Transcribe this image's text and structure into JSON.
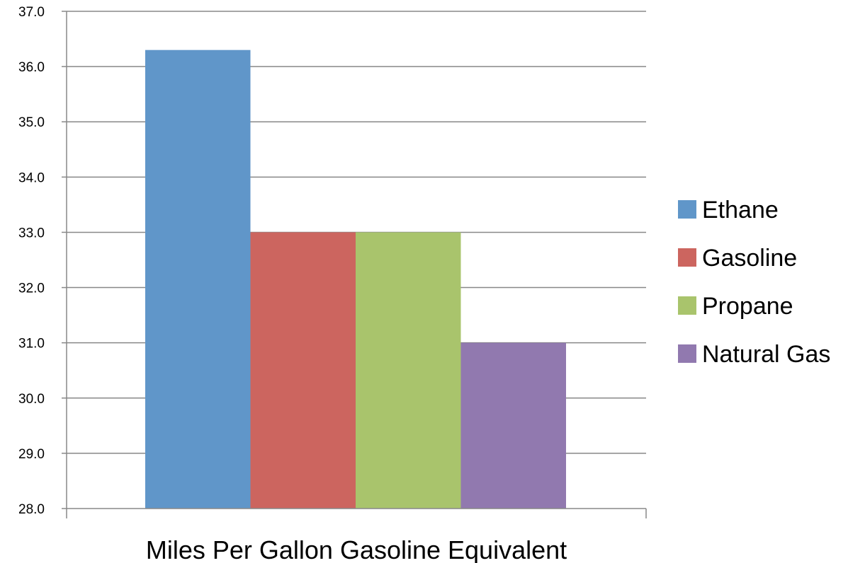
{
  "chart_data": {
    "type": "bar",
    "title": "",
    "xlabel": "Miles Per Gallon Gasoline Equivalent",
    "ylabel": "",
    "ylim": [
      28.0,
      37.0
    ],
    "y_ticks": [
      "28.0",
      "29.0",
      "30.0",
      "31.0",
      "32.0",
      "33.0",
      "34.0",
      "35.0",
      "36.0",
      "37.0"
    ],
    "y_tick_values": [
      28,
      29,
      30,
      31,
      32,
      33,
      34,
      35,
      36,
      37
    ],
    "grid": true,
    "legend_position": "right",
    "categories": [
      "Miles Per Gallon Gasoline Equivalent"
    ],
    "series": [
      {
        "name": "Ethane",
        "values": [
          36.3
        ],
        "color": "#6096C9"
      },
      {
        "name": "Gasoline",
        "values": [
          33.0
        ],
        "color": "#CC655F"
      },
      {
        "name": "Propane",
        "values": [
          33.0
        ],
        "color": "#A9C46C"
      },
      {
        "name": "Natural Gas",
        "values": [
          31.0
        ],
        "color": "#9179AF"
      }
    ]
  }
}
